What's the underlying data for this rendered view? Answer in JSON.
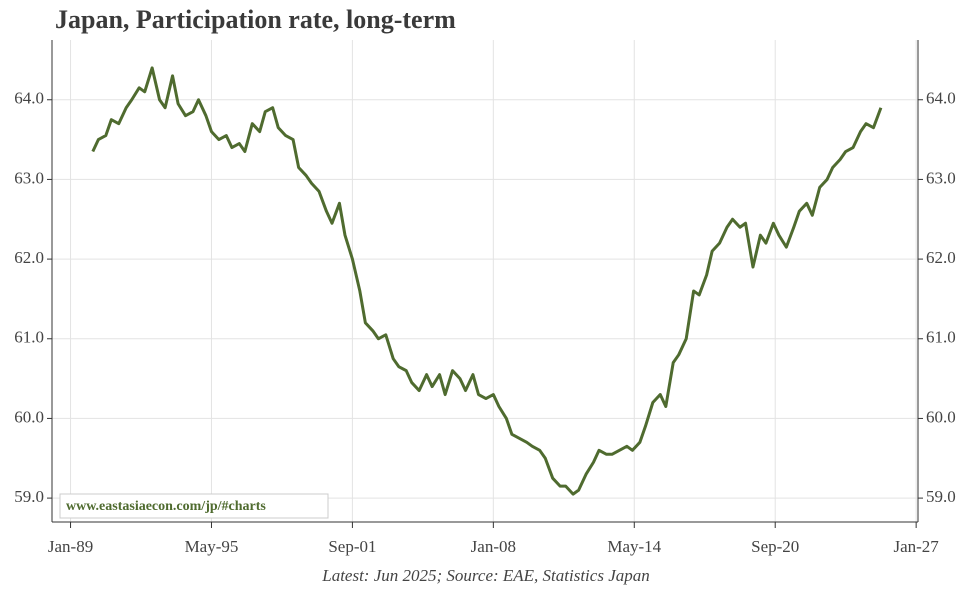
{
  "chart_data": {
    "type": "line",
    "title": "Japan, Participation rate, long-term",
    "source": "Latest: Jun 2025; Source: EAE, Statistics Japan",
    "watermark": "www.eastasiaecon.com/jp/#charts",
    "x": [
      "1990-01",
      "1990-04",
      "1990-08",
      "1990-11",
      "1991-03",
      "1991-07",
      "1991-10",
      "1992-02",
      "1992-05",
      "1992-09",
      "1993-01",
      "1993-04",
      "1993-08",
      "1993-11",
      "1994-03",
      "1994-07",
      "1994-10",
      "1995-02",
      "1995-05",
      "1995-09",
      "1996-01",
      "1996-04",
      "1996-08",
      "1996-11",
      "1997-03",
      "1997-07",
      "1997-10",
      "1998-02",
      "1998-05",
      "1998-09",
      "1999-01",
      "1999-04",
      "1999-08",
      "1999-11",
      "2000-03",
      "2000-07",
      "2000-10",
      "2001-02",
      "2001-05",
      "2001-09",
      "2002-01",
      "2002-04",
      "2002-08",
      "2002-11",
      "2003-03",
      "2003-07",
      "2003-10",
      "2004-02",
      "2004-05",
      "2004-09",
      "2005-01",
      "2005-04",
      "2005-08",
      "2005-11",
      "2006-03",
      "2006-07",
      "2006-10",
      "2007-02",
      "2007-05",
      "2007-09",
      "2008-01",
      "2008-04",
      "2008-08",
      "2008-11",
      "2009-03",
      "2009-07",
      "2009-10",
      "2010-02",
      "2010-05",
      "2010-09",
      "2011-01",
      "2011-04",
      "2011-08",
      "2011-11",
      "2012-03",
      "2012-07",
      "2012-10",
      "2013-02",
      "2013-05",
      "2013-09",
      "2014-01",
      "2014-04",
      "2014-08",
      "2014-11",
      "2015-03",
      "2015-07",
      "2015-10",
      "2016-02",
      "2016-05",
      "2016-09",
      "2017-01",
      "2017-04",
      "2017-08",
      "2017-11",
      "2018-03",
      "2018-07",
      "2018-10",
      "2019-02",
      "2019-05",
      "2019-09",
      "2020-01",
      "2020-04",
      "2020-08",
      "2020-11",
      "2021-03",
      "2021-07",
      "2021-10",
      "2022-02",
      "2022-05",
      "2022-09",
      "2023-01",
      "2023-04",
      "2023-08",
      "2023-11",
      "2024-03",
      "2024-07",
      "2024-10",
      "2025-02",
      "2025-06"
    ],
    "series": [
      {
        "name": "Participation rate",
        "color": "#4f6b2f",
        "values": [
          63.35,
          63.5,
          63.55,
          63.75,
          63.7,
          63.9,
          64.0,
          64.15,
          64.1,
          64.4,
          64.0,
          63.9,
          64.3,
          63.95,
          63.8,
          63.85,
          64.0,
          63.8,
          63.6,
          63.5,
          63.55,
          63.4,
          63.45,
          63.35,
          63.7,
          63.6,
          63.85,
          63.9,
          63.65,
          63.55,
          63.5,
          63.15,
          63.05,
          62.95,
          62.85,
          62.6,
          62.45,
          62.7,
          62.3,
          62.0,
          61.6,
          61.2,
          61.1,
          61.0,
          61.05,
          60.75,
          60.65,
          60.6,
          60.45,
          60.35,
          60.55,
          60.4,
          60.55,
          60.3,
          60.6,
          60.5,
          60.35,
          60.55,
          60.3,
          60.25,
          60.3,
          60.15,
          60.0,
          59.8,
          59.75,
          59.7,
          59.65,
          59.6,
          59.5,
          59.25,
          59.15,
          59.15,
          59.05,
          59.1,
          59.3,
          59.45,
          59.6,
          59.55,
          59.55,
          59.6,
          59.65,
          59.6,
          59.7,
          59.9,
          60.2,
          60.3,
          60.15,
          60.7,
          60.8,
          61.0,
          61.6,
          61.55,
          61.8,
          62.1,
          62.2,
          62.4,
          62.5,
          62.4,
          62.45,
          61.9,
          62.3,
          62.2,
          62.45,
          62.3,
          62.15,
          62.4,
          62.6,
          62.7,
          62.55,
          62.9,
          63.0,
          63.15,
          63.25,
          63.35,
          63.4,
          63.6,
          63.7,
          63.65,
          63.9
        ]
      }
    ],
    "xlim": [
      "1988-03",
      "2027-02"
    ],
    "xticks": [
      {
        "value": "1989-01",
        "label": "Jan-89"
      },
      {
        "value": "1995-05",
        "label": "May-95"
      },
      {
        "value": "2001-09",
        "label": "Sep-01"
      },
      {
        "value": "2008-01",
        "label": "Jan-08"
      },
      {
        "value": "2014-05",
        "label": "May-14"
      },
      {
        "value": "2020-09",
        "label": "Sep-20"
      },
      {
        "value": "2027-01",
        "label": "Jan-27"
      }
    ],
    "ylim": [
      58.7,
      64.75
    ],
    "yticks": [
      {
        "value": 59,
        "label": "59.0"
      },
      {
        "value": 60,
        "label": "60.0"
      },
      {
        "value": 61,
        "label": "61.0"
      },
      {
        "value": 62,
        "label": "62.0"
      },
      {
        "value": 63,
        "label": "63.0"
      },
      {
        "value": 64,
        "label": "64.0"
      }
    ],
    "grid": true
  }
}
